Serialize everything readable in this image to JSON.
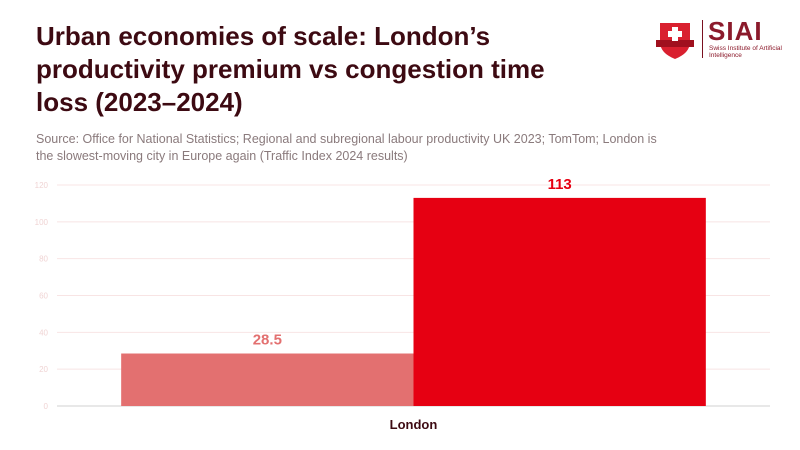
{
  "title": "Urban economies of scale: London’s productivity premium vs congestion time loss (2023–2024)",
  "subtitle": "Source: Office for National Statistics; Regional and subregional labour productivity UK 2023; TomTom; London is the slowest-moving city in Europe again (Traffic Index 2024 results)",
  "logo": {
    "brand": "SIAI",
    "brand_sub": "Swiss Institute of Artificial Intelligence",
    "icon": "shield-cross-icon"
  },
  "colors": {
    "title": "#3d0a12",
    "bar_productivity": "#e37070",
    "bar_congestion": "#e60012",
    "grid": "#f8e4e4",
    "axis": "#d0d0d0"
  },
  "chart_data": {
    "type": "bar",
    "title": "Urban economies of scale: London’s productivity premium vs congestion time loss (2023–2024)",
    "categories": [
      "London"
    ],
    "series": [
      {
        "name": "Productivity premium",
        "values": [
          28.5
        ],
        "label": "28.5",
        "color": "#e37070"
      },
      {
        "name": "Congestion time loss",
        "values": [
          113
        ],
        "label": "113",
        "color": "#e60012"
      }
    ],
    "xlabel": "",
    "ylabel": "",
    "ylim": [
      0,
      120
    ],
    "yticks": [
      0,
      20,
      40,
      60,
      80,
      100,
      120
    ],
    "grid": true,
    "legend": "none"
  }
}
